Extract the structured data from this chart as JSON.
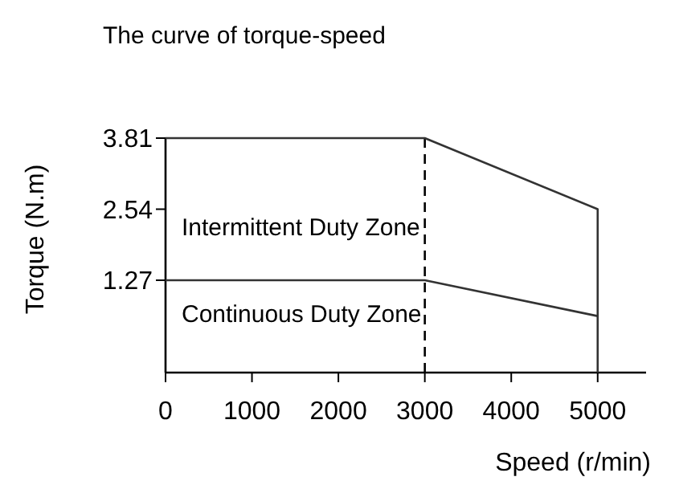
{
  "chart_data": {
    "type": "line",
    "title": "The curve of torque-speed",
    "xlabel": "Speed (r/min)",
    "ylabel": "Torque (N.m)",
    "xlim": [
      0,
      5560
    ],
    "xticks": [
      0,
      1000,
      2000,
      3000,
      4000,
      5000
    ],
    "ylim": [
      -0.38,
      3.81
    ],
    "yticks": [
      1.27,
      2.54,
      3.81
    ],
    "series": [
      {
        "x": [
          0,
          3000,
          5000,
          5000
        ],
        "values": [
          3.81,
          3.81,
          2.54,
          -0.38
        ],
        "color": "#333333"
      },
      {
        "x": [
          0,
          3000,
          5000
        ],
        "values": [
          1.27,
          1.27,
          0.63
        ],
        "color": "#333333"
      }
    ],
    "ref_lines": [
      {
        "axis": "x",
        "value": 3000,
        "line_style": "dashed",
        "color": "#000000"
      }
    ],
    "annotations": [
      "Intermittent Duty Zone",
      "Continuous Duty Zone"
    ],
    "line_style": "solid",
    "grid": false
  }
}
